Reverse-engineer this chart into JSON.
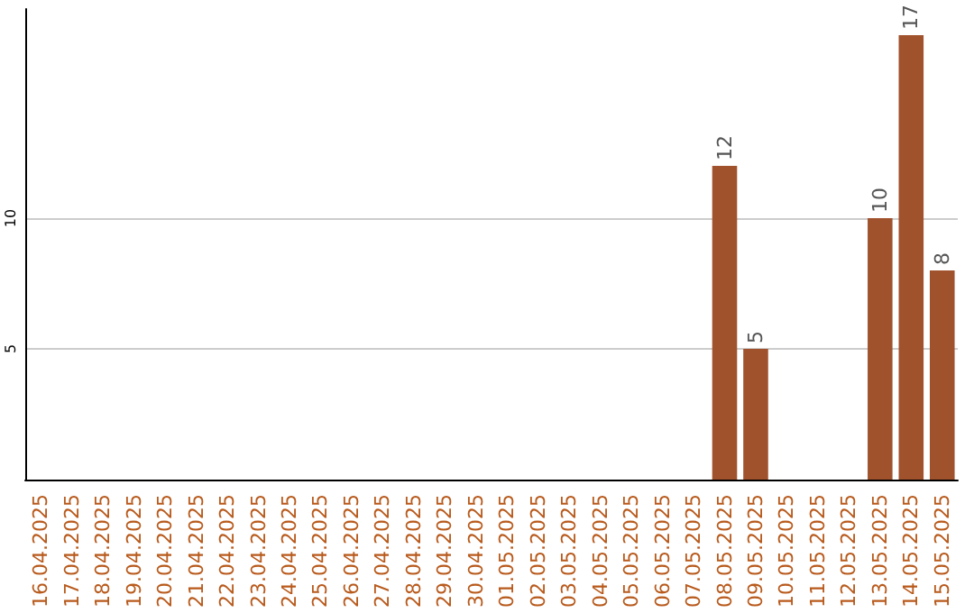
{
  "chart_data": {
    "type": "bar",
    "categories": [
      "16.04.2025",
      "17.04.2025",
      "18.04.2025",
      "19.04.2025",
      "20.04.2025",
      "21.04.2025",
      "22.04.2025",
      "23.04.2025",
      "24.04.2025",
      "25.04.2025",
      "26.04.2025",
      "27.04.2025",
      "28.04.2025",
      "29.04.2025",
      "30.04.2025",
      "01.05.2025",
      "02.05.2025",
      "03.05.2025",
      "04.05.2025",
      "05.05.2025",
      "06.05.2025",
      "07.05.2025",
      "08.05.2025",
      "09.05.2025",
      "10.05.2025",
      "11.05.2025",
      "12.05.2025",
      "13.05.2025",
      "14.05.2025",
      "15.05.2025"
    ],
    "values": [
      0,
      0,
      0,
      0,
      0,
      0,
      0,
      0,
      0,
      0,
      0,
      0,
      0,
      0,
      0,
      0,
      0,
      0,
      0,
      0,
      0,
      0,
      12,
      5,
      0,
      0,
      0,
      10,
      17,
      8
    ],
    "value_labels": [
      null,
      null,
      null,
      null,
      null,
      null,
      null,
      null,
      null,
      null,
      null,
      null,
      null,
      null,
      null,
      null,
      null,
      null,
      null,
      null,
      null,
      null,
      "12",
      "5",
      null,
      null,
      null,
      "10",
      "17",
      "8"
    ],
    "color": "#a0522d",
    "ylim": [
      0,
      18
    ],
    "yticks": [
      5,
      10
    ],
    "grid": "y"
  }
}
